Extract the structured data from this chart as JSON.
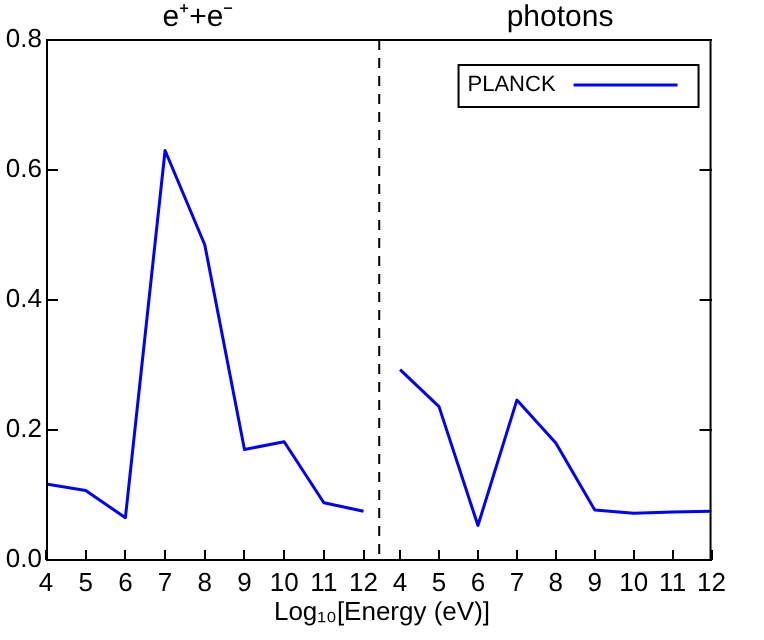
{
  "chart_data": [
    {
      "type": "line",
      "title": "e⁺+e⁻",
      "xlabel": "Log₁₀[Energy (eV)]",
      "x": [
        4,
        5,
        6,
        7,
        8,
        9,
        10,
        11,
        12
      ],
      "xlim": [
        4,
        12.42
      ],
      "xticks": [
        4,
        5,
        6,
        7,
        8,
        9,
        10,
        11,
        12
      ],
      "ylim": [
        0,
        0.8
      ],
      "yticks": [
        {
          "value": 0,
          "label": "0.0"
        },
        0.2,
        0.4,
        0.6,
        0.8
      ],
      "series": [
        {
          "color": "#0000ff",
          "values": [
            0.117,
            0.107,
            0.065,
            0.63,
            0.485,
            0.17,
            0.182,
            0.088,
            0.075
          ]
        }
      ]
    },
    {
      "type": "line",
      "title": "photons",
      "x": [
        4,
        5,
        6,
        7,
        8,
        9,
        10,
        11,
        12
      ],
      "xlim": [
        3.47,
        12
      ],
      "xticks": [
        4,
        5,
        6,
        7,
        8,
        9,
        10,
        11,
        12
      ],
      "ylim": [
        0,
        0.8
      ],
      "yticks": [
        0,
        0.2,
        0.4,
        0.6,
        0.8
      ],
      "tick_labels": "x",
      "legend": "top right",
      "series": [
        {
          "name": "PLANCK",
          "color": "#0000ff",
          "values": [
            0.293,
            0.236,
            0.053,
            0.246,
            0.18,
            0.077,
            0.072,
            0.074,
            0.075
          ]
        }
      ]
    }
  ]
}
